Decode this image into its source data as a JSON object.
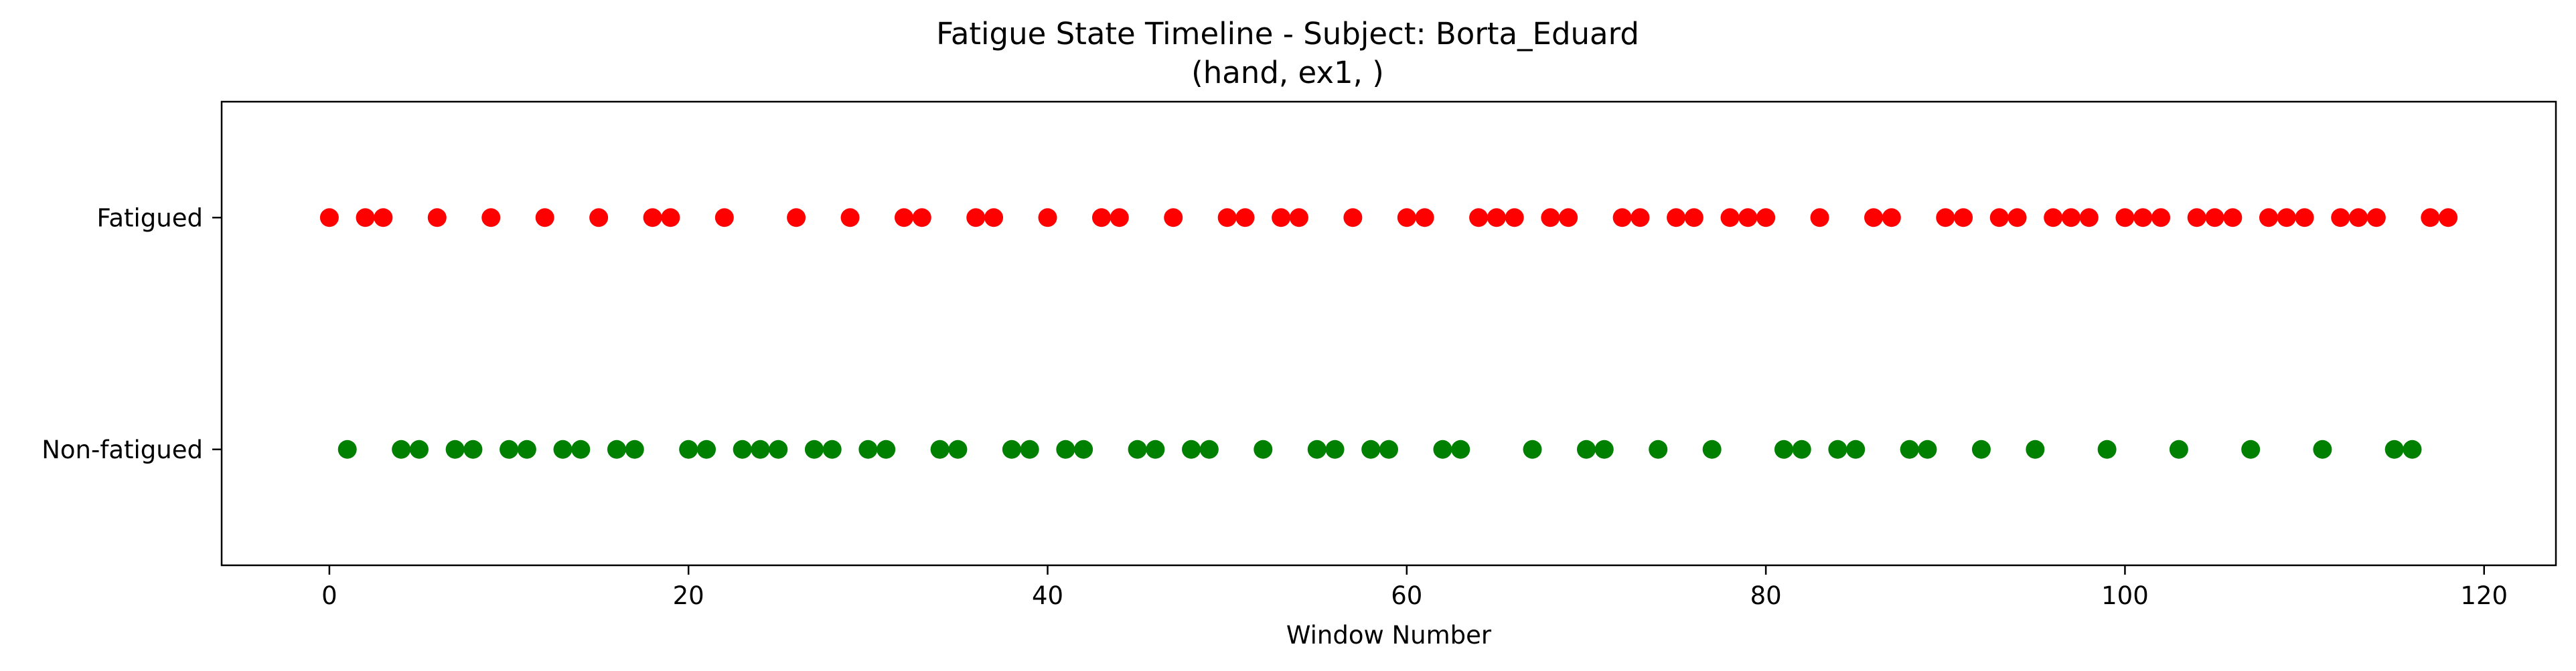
{
  "chart_data": {
    "type": "scatter",
    "title": "Fatigue State Timeline - Subject: Borta_Eduard",
    "subtitle": "(hand, ex1, )",
    "xlabel": "Window Number",
    "ylabel": "",
    "xlim": [
      -6,
      124
    ],
    "ylim": [
      -0.5,
      1.5
    ],
    "xticks": [
      0,
      20,
      40,
      60,
      80,
      100,
      120
    ],
    "yticks": [
      {
        "value": 0,
        "label": "Non-fatigued"
      },
      {
        "value": 1,
        "label": "Fatigued"
      }
    ],
    "grid": false,
    "series": [
      {
        "state": 1,
        "color": "#ff0000",
        "x": [
          0,
          2,
          3,
          6,
          9,
          12,
          15,
          18,
          19,
          22,
          26,
          29,
          32,
          33,
          36,
          37,
          40,
          43,
          44,
          47,
          50,
          51,
          53,
          54,
          57,
          60,
          61,
          64,
          65,
          66,
          68,
          69,
          72,
          73,
          75,
          76,
          78,
          79,
          80,
          83,
          86,
          87,
          90,
          91,
          93,
          94,
          96,
          97,
          98,
          100,
          101,
          102,
          104,
          105,
          106,
          108,
          109,
          110,
          112,
          113,
          114,
          117,
          118
        ]
      },
      {
        "state": 0,
        "color": "#008000",
        "x": [
          1,
          4,
          5,
          7,
          8,
          10,
          11,
          13,
          14,
          16,
          17,
          20,
          21,
          23,
          24,
          25,
          27,
          28,
          30,
          31,
          34,
          35,
          38,
          39,
          41,
          42,
          45,
          46,
          48,
          49,
          52,
          55,
          56,
          58,
          59,
          62,
          63,
          67,
          70,
          71,
          74,
          77,
          81,
          82,
          84,
          85,
          88,
          89,
          92,
          95,
          99,
          103,
          107,
          111,
          115,
          116
        ]
      }
    ]
  }
}
